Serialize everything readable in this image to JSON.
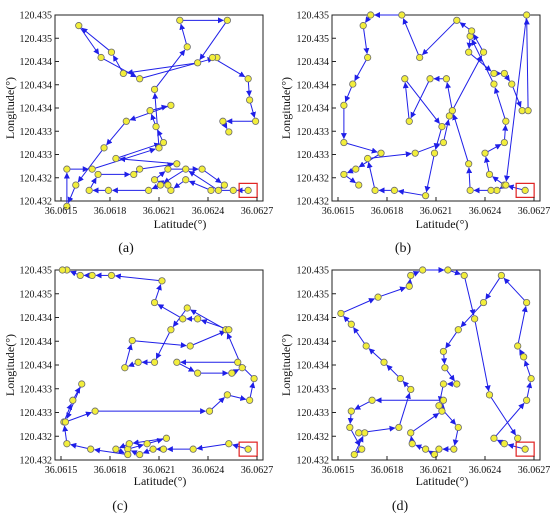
{
  "figure": {
    "panel_count": 4,
    "colors": {
      "route": "#1f1fe8",
      "point_fill": "#f2ee3b",
      "point_stroke": "#6b6b6b",
      "highlight": "#e02020",
      "frame": "#222222"
    }
  },
  "chart_data": [
    {
      "type": "line",
      "panel_label": "(a)",
      "xlabel": "Latitude(°)",
      "ylabel": "Longitude(°)",
      "xlim": [
        36.0614,
        36.0628
      ],
      "ylim": [
        120.432,
        120.4355
      ],
      "x_ticks": [
        "36.0615",
        "36.0618",
        "36.0621",
        "36.0624",
        "36.0627"
      ],
      "y_ticks": [
        "120.435",
        "120.435",
        "120.434",
        "120.434",
        "120.434",
        "120.433",
        "120.433",
        "120.432",
        "120.432"
      ],
      "highlight": {
        "x": 36.0627,
        "y": 120.4322
      },
      "series": [
        {
          "x": [
            36.0627,
            36.0626,
            36.06245,
            36.06228,
            36.06218,
            36.06216,
            36.06207,
            36.06216,
            36.06239,
            36.06254,
            36.0625,
            36.06228,
            36.06211,
            36.06203,
            36.06176,
            36.06163,
            36.06169,
            36.06193,
            36.06197,
            36.06222,
            36.06181,
            36.06213,
            36.06208,
            36.06204,
            36.06218,
            36.06188,
            36.06173,
            36.06154,
            36.06148,
            36.06148,
            36.06165,
            36.0621,
            36.06207,
            36.06229,
            36.06224,
            36.06256,
            36.06236,
            36.06186,
            36.06178,
            36.06156,
            36.06171,
            36.06197,
            36.06249,
            36.06246,
            36.0627,
            36.06271,
            36.06275,
            36.06253,
            36.06257
          ],
          "y": [
            120.4322,
            120.4322,
            120.4322,
            120.4324,
            120.4322,
            120.4323,
            120.4324,
            120.4326,
            120.4326,
            120.4323,
            120.4322,
            120.4326,
            120.4323,
            120.4322,
            120.4322,
            120.4322,
            120.4325,
            120.4325,
            120.4326,
            120.4327,
            120.4328,
            120.4331,
            120.4334,
            120.4337,
            120.4338,
            120.4335,
            120.433,
            120.4323,
            120.4319,
            120.4326,
            120.4326,
            120.433,
            120.4341,
            120.4349,
            120.4354,
            120.4354,
            120.4346,
            120.4344,
            120.4348,
            120.4353,
            120.4347,
            120.4343,
            120.4347,
            120.4347,
            120.4343,
            120.4339,
            120.4335,
            120.4335,
            120.4333
          ]
        }
      ]
    },
    {
      "type": "line",
      "panel_label": "(b)",
      "xlabel": "Latitude(°)",
      "ylabel": "Longitude(°)",
      "xlim": [
        36.0614,
        36.0628
      ],
      "ylim": [
        120.432,
        120.4355
      ],
      "x_ticks": [
        "36.0615",
        "36.0618",
        "36.0621",
        "36.0624",
        "36.0627"
      ],
      "y_ticks": [
        "120.435",
        "120.435",
        "120.434",
        "120.434",
        "120.434",
        "120.433",
        "120.433",
        "120.432",
        "120.432"
      ],
      "highlight": {
        "x": 36.0627,
        "y": 120.4322
      },
      "series": [
        {
          "x": [
            36.0627,
            36.06256,
            36.06246,
            36.06243,
            36.06256,
            36.06257,
            36.06249,
            36.06233,
            36.06232,
            36.06249,
            36.06256,
            36.06261,
            36.06268,
            36.06272,
            36.06271,
            36.06257,
            36.06251,
            36.06247,
            36.06233,
            36.06232,
            36.06221,
            36.06217,
            36.06206,
            36.06192,
            36.06189,
            36.06214,
            36.06209,
            36.06203,
            36.06182,
            36.06169,
            36.06164,
            36.06196,
            36.06215,
            36.06219,
            36.06242,
            36.06234,
            36.06224,
            36.06199,
            36.06187,
            36.06166,
            36.06161,
            36.06164,
            36.06154,
            36.06148,
            36.06148,
            36.06173,
            36.06156,
            36.06148,
            36.06158
          ],
          "y": [
            120.4322,
            120.4323,
            120.4325,
            120.4329,
            120.4331,
            120.4335,
            120.4342,
            120.4351,
            120.4348,
            120.4344,
            120.4344,
            120.4342,
            120.4337,
            120.4337,
            120.4355,
            120.4323,
            120.4322,
            120.4322,
            120.4322,
            120.4327,
            120.4337,
            120.4343,
            120.4343,
            120.4335,
            120.4343,
            120.4334,
            120.4329,
            120.4321,
            120.4322,
            120.4322,
            120.4328,
            120.4329,
            120.4331,
            120.4336,
            120.4348,
            120.4352,
            120.4354,
            120.4347,
            120.4355,
            120.4355,
            120.4353,
            120.4347,
            120.4342,
            120.4338,
            120.4331,
            120.4329,
            120.4326,
            120.4325,
            120.4323
          ]
        }
      ]
    },
    {
      "type": "line",
      "panel_label": "(c)",
      "xlabel": "Latitude(°)",
      "ylabel": "Longitude(°)",
      "xlim": [
        36.0614,
        36.0628
      ],
      "ylim": [
        120.432,
        120.4355
      ],
      "x_ticks": [
        "36.0615",
        "36.0618",
        "36.0621",
        "36.0624",
        "36.0627"
      ],
      "y_ticks": [
        "120.435",
        "120.435",
        "120.434",
        "120.434",
        "120.434",
        "120.433",
        "120.433",
        "120.432",
        "120.432"
      ],
      "highlight": {
        "x": 36.0627,
        "y": 120.4322
      },
      "series": [
        {
          "x": [
            36.0627,
            36.06257,
            36.06233,
            36.06213,
            36.06206,
            36.06197,
            36.06189,
            36.06202,
            36.06215,
            36.0619,
            36.06181,
            36.06189,
            36.06164,
            36.06148,
            36.06146,
            36.06152,
            36.06158,
            36.06147,
            36.06167,
            36.06244,
            36.06256,
            36.06271,
            36.06274,
            36.06263,
            36.06222,
            36.06236,
            36.06259,
            36.06266,
            36.06255,
            36.06229,
            36.06218,
            36.06207,
            36.06196,
            36.06187,
            36.06192,
            36.06231,
            36.06257,
            36.06236,
            36.06226,
            36.06207,
            36.06212,
            36.06178,
            36.06165,
            36.06157,
            36.06148,
            36.06145
          ],
          "y": [
            120.4322,
            120.4323,
            120.4322,
            120.4322,
            120.4322,
            120.4321,
            120.4322,
            120.4323,
            120.4324,
            120.4323,
            120.4322,
            120.4321,
            120.4322,
            120.4323,
            120.4327,
            120.4331,
            120.4334,
            120.4327,
            120.4329,
            120.4329,
            120.4332,
            120.4331,
            120.4335,
            120.4338,
            120.4338,
            120.4336,
            120.4336,
            120.4337,
            120.4344,
            120.4348,
            120.4344,
            120.4338,
            120.4338,
            120.4337,
            120.4342,
            120.4341,
            120.4344,
            120.4346,
            120.4346,
            120.4349,
            120.4353,
            120.4354,
            120.4354,
            120.4354,
            120.4355,
            120.4355
          ]
        }
      ]
    },
    {
      "type": "line",
      "panel_label": "(d)",
      "xlabel": "Latitude(°)",
      "ylabel": "Longitude(°)",
      "xlim": [
        36.0614,
        36.0628
      ],
      "ylim": [
        120.432,
        120.4355
      ],
      "x_ticks": [
        "36.0615",
        "36.0618",
        "36.0621",
        "36.0624",
        "36.0627"
      ],
      "y_ticks": [
        "120.435",
        "120.435",
        "120.434",
        "120.434",
        "120.434",
        "120.433",
        "120.433",
        "120.432",
        "120.432"
      ],
      "highlight": {
        "x": 36.0627,
        "y": 120.4322
      },
      "series": [
        {
          "x": [
            36.0627,
            36.06256,
            36.06249,
            36.06271,
            36.06274,
            36.06269,
            36.06265,
            36.06271,
            36.06254,
            36.06242,
            36.06225,
            36.06215,
            36.06216,
            36.06224,
            36.06215,
            36.06212,
            36.06225,
            36.06222,
            36.06212,
            36.06209,
            36.06203,
            36.06194,
            36.06193,
            36.06214,
            36.06215,
            36.06167,
            36.06153,
            36.06152,
            36.0616,
            36.06155,
            36.06162,
            36.06158,
            36.06185,
            36.06193,
            36.06186,
            36.06175,
            36.06163,
            36.06153,
            36.06146,
            36.06171,
            36.06192,
            36.06193,
            36.06201,
            36.06218,
            36.06229,
            36.06236,
            36.06246,
            36.06265
          ],
          "y": [
            120.4322,
            120.4323,
            120.4324,
            120.4331,
            120.4335,
            120.4339,
            120.4341,
            120.4349,
            120.4354,
            120.4349,
            120.4344,
            120.434,
            120.4337,
            120.4334,
            120.4334,
            120.433,
            120.4326,
            120.4322,
            120.4322,
            120.4321,
            120.4322,
            120.4323,
            120.4325,
            120.4329,
            120.4331,
            120.4331,
            120.4329,
            120.4326,
            120.4322,
            120.4321,
            120.4325,
            120.4325,
            120.4326,
            120.4333,
            120.4335,
            120.4338,
            120.4341,
            120.4345,
            120.4347,
            120.435,
            120.4352,
            120.4354,
            120.4355,
            120.4355,
            120.4354,
            120.4346,
            120.4332,
            120.4324
          ]
        }
      ]
    }
  ]
}
